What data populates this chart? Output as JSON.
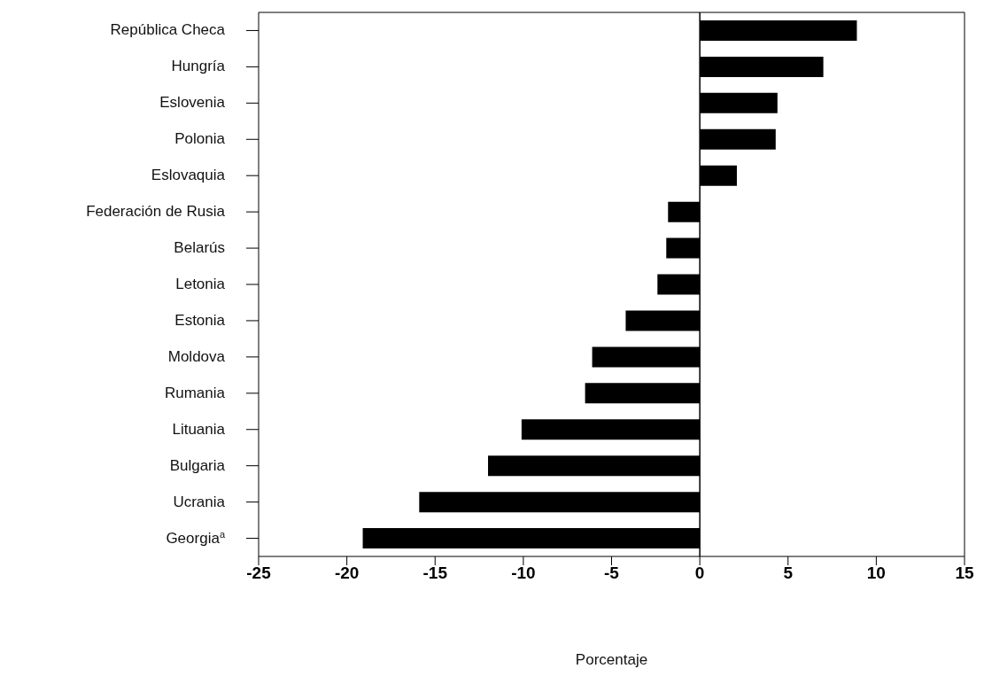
{
  "chart_data": {
    "type": "bar",
    "orientation": "horizontal",
    "xlabel": "Porcentaje",
    "categories": [
      "República Checa",
      "Hungría",
      "Eslovenia",
      "Polonia",
      "Eslovaquia",
      "Federación de Rusia",
      "Belarús",
      "Letonia",
      "Estonia",
      "Moldova",
      "Rumania",
      "Lituania",
      "Bulgaria",
      "Ucrania",
      "Georgia$^{a}$"
    ],
    "values": [
      8.9,
      7.0,
      4.4,
      4.3,
      2.1,
      -1.8,
      -1.9,
      -2.4,
      -4.2,
      -6.1,
      -6.5,
      -10.1,
      -12.0,
      -15.9,
      -19.1
    ],
    "color": "#000000",
    "xlim": [
      -25,
      15
    ],
    "xticks": [
      -25,
      -20,
      -15,
      -10,
      -5,
      0,
      5,
      10,
      15
    ],
    "ref_lines": [
      {
        "axis": "x",
        "value": 0
      }
    ],
    "grid": false,
    "legend": false
  }
}
